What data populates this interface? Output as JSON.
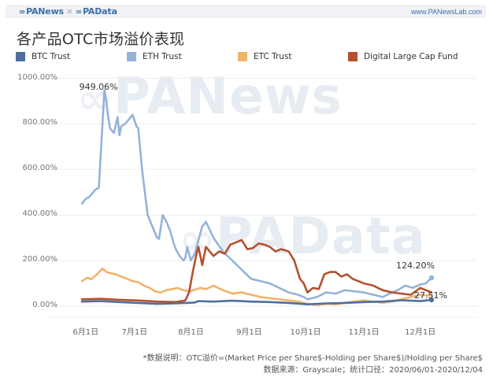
{
  "header": {
    "brand_left": "PANews",
    "brand_sep": "×",
    "brand_right": "PAData",
    "logo_icon": "infinity-logo-icon",
    "site": "www.PANewsLab.com"
  },
  "watermarks": {
    "top": "PANews",
    "bottom": "PAData"
  },
  "chart_data": {
    "type": "line",
    "title": "各产品OTC市场溢价表现",
    "xlabel": "",
    "ylabel": "",
    "ylim": [
      0,
      1000
    ],
    "grid": true,
    "legend_position": "top",
    "y_ticks": [
      "1000.00%",
      "800.00%",
      "600.00%",
      "400.00%",
      "200.00%",
      "0.00%"
    ],
    "y_tick_values": [
      1000,
      800,
      600,
      400,
      200,
      0
    ],
    "x_ticks": [
      "6月1日",
      "7月1日",
      "8月1日",
      "9月1日",
      "10月1日",
      "11月1日",
      "12月1日"
    ],
    "x_tick_days": [
      2,
      28,
      58,
      89,
      119,
      150,
      180
    ],
    "x_unit": "days since 2020/06/01",
    "series": [
      {
        "name": "BTC Trust",
        "color": "#4e6f9e",
        "days": [
          0,
          10,
          20,
          30,
          40,
          50,
          60,
          62,
          70,
          80,
          90,
          100,
          110,
          120,
          130,
          140,
          150,
          160,
          170,
          180,
          186
        ],
        "values": [
          20,
          22,
          18,
          14,
          10,
          12,
          16,
          22,
          20,
          24,
          20,
          18,
          14,
          8,
          12,
          14,
          18,
          20,
          26,
          22,
          27.51
        ]
      },
      {
        "name": "ETH Trust",
        "color": "#95b3d8",
        "days": [
          0,
          2,
          4,
          7,
          9,
          12,
          13,
          14,
          15,
          17,
          19,
          20,
          21,
          23,
          25,
          27,
          29,
          30,
          32,
          35,
          38,
          40,
          41,
          43,
          45,
          47,
          49,
          50,
          52,
          54,
          55,
          56,
          58,
          60,
          62,
          64,
          66,
          70,
          75,
          80,
          85,
          90,
          95,
          100,
          105,
          110,
          115,
          118,
          120,
          125,
          130,
          135,
          140,
          145,
          150,
          155,
          160,
          165,
          168,
          172,
          176,
          180,
          183,
          186
        ],
        "values": [
          450,
          470,
          480,
          510,
          520,
          949.06,
          900,
          830,
          780,
          760,
          830,
          750,
          790,
          800,
          820,
          840,
          790,
          780,
          600,
          400,
          340,
          300,
          295,
          400,
          370,
          330,
          270,
          250,
          220,
          200,
          210,
          260,
          200,
          230,
          290,
          350,
          370,
          300,
          240,
          200,
          160,
          120,
          110,
          100,
          80,
          60,
          50,
          40,
          30,
          40,
          60,
          55,
          70,
          65,
          60,
          50,
          40,
          60,
          70,
          90,
          80,
          95,
          100,
          124.2
        ]
      },
      {
        "name": "ETC Trust",
        "color": "#efb36a",
        "days": [
          0,
          3,
          5,
          8,
          11,
          13,
          15,
          18,
          21,
          24,
          27,
          30,
          33,
          36,
          39,
          42,
          45,
          48,
          51,
          54,
          57,
          60,
          63,
          66,
          70,
          75,
          80,
          85,
          90,
          95,
          100,
          105,
          110,
          115,
          120,
          125,
          130,
          135,
          140,
          145,
          150,
          155,
          160,
          165,
          170,
          175,
          180,
          186
        ],
        "values": [
          110,
          125,
          118,
          140,
          165,
          150,
          145,
          140,
          130,
          120,
          110,
          105,
          90,
          80,
          65,
          60,
          70,
          75,
          80,
          70,
          65,
          72,
          80,
          75,
          90,
          70,
          55,
          60,
          50,
          40,
          35,
          30,
          25,
          20,
          10,
          5,
          10,
          8,
          15,
          20,
          25,
          20,
          15,
          20,
          30,
          40,
          50,
          45
        ]
      },
      {
        "name": "Digital Large Cap Fund",
        "color": "#b5502e",
        "days": [
          0,
          10,
          20,
          30,
          40,
          50,
          55,
          57,
          59,
          61,
          62,
          64,
          66,
          70,
          73,
          76,
          79,
          82,
          85,
          88,
          91,
          94,
          97,
          100,
          103,
          106,
          110,
          113,
          116,
          118,
          120,
          123,
          126,
          129,
          132,
          135,
          138,
          141,
          144,
          147,
          150,
          155,
          160,
          165,
          170,
          175,
          180,
          183,
          186
        ],
        "values": [
          30,
          32,
          28,
          25,
          20,
          18,
          25,
          60,
          150,
          230,
          260,
          180,
          260,
          220,
          240,
          230,
          270,
          280,
          290,
          250,
          255,
          275,
          270,
          260,
          240,
          250,
          240,
          200,
          120,
          100,
          60,
          80,
          75,
          140,
          150,
          150,
          130,
          140,
          120,
          110,
          100,
          90,
          70,
          60,
          55,
          50,
          80,
          70,
          60
        ]
      }
    ],
    "annotations": [
      {
        "text": "949.06%",
        "series": "ETH Trust",
        "day": 12,
        "value": 949.06
      },
      {
        "text": "124.20%",
        "series": "ETH Trust",
        "day": 186,
        "value": 124.2
      },
      {
        "text": "27.51%",
        "series": "BTC Trust",
        "day": 186,
        "value": 27.51
      }
    ]
  },
  "footnote": {
    "line1": "*数据说明：OTC溢价=(Market Price per Share$-Holding per Share$)/Holding per Share$",
    "line2": "数据来源：Grayscale；统计口径：2020/06/01-2020/12/04"
  }
}
